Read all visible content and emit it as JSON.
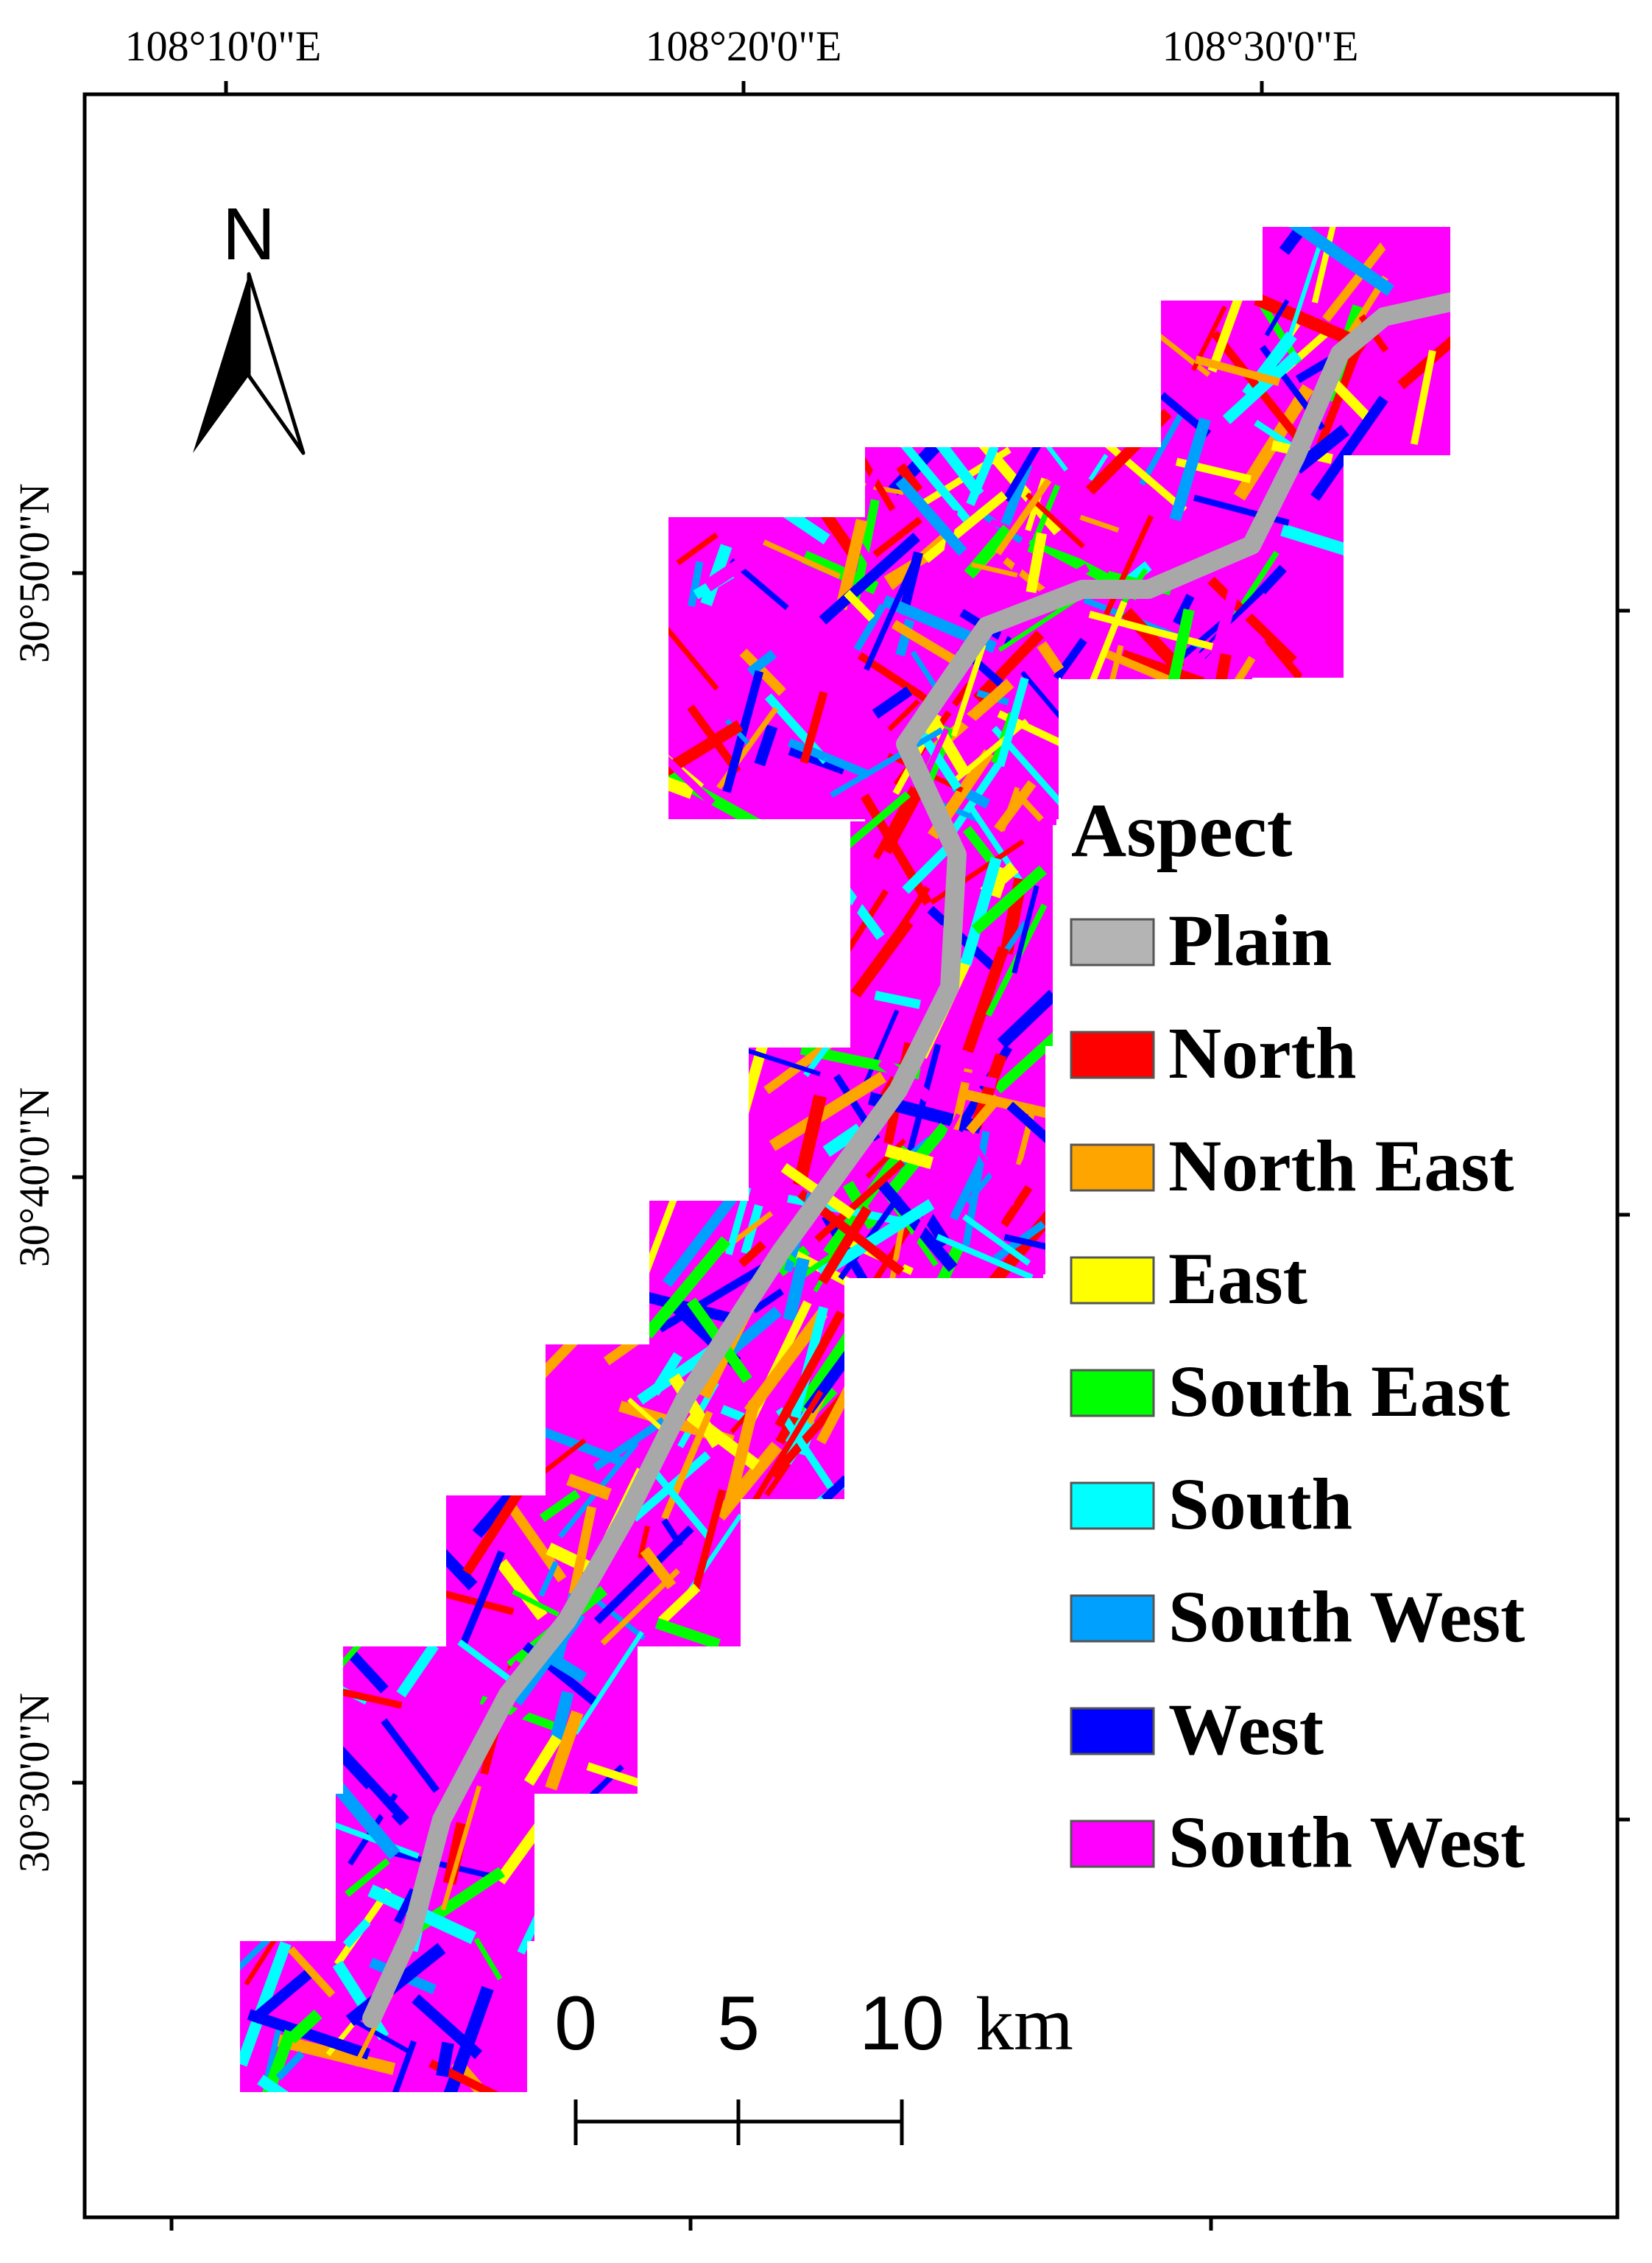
{
  "north_arrow": {
    "label": "N"
  },
  "graticule": {
    "top_labels": [
      "108°10'0\"E",
      "108°20'0\"E",
      "108°30'0\"E"
    ],
    "left_labels": [
      "30°50'0\"N",
      "30°40'0\"N",
      "30°30'0\"N"
    ]
  },
  "legend": {
    "title": "Aspect",
    "items": [
      {
        "label": "Plain",
        "color": "#b4b4b4"
      },
      {
        "label": "North",
        "color": "#ff0000"
      },
      {
        "label": "North East",
        "color": "#ffa500"
      },
      {
        "label": "East",
        "color": "#ffff00"
      },
      {
        "label": "South East",
        "color": "#00ff00"
      },
      {
        "label": "South",
        "color": "#00ffff"
      },
      {
        "label": "South West",
        "color": "#00a0ff"
      },
      {
        "label": "West",
        "color": "#0000ff"
      },
      {
        "label": "South West",
        "color": "#ff00ff"
      }
    ]
  },
  "scale_bar": {
    "labels": [
      "0",
      "5",
      "10"
    ],
    "unit": "km"
  }
}
